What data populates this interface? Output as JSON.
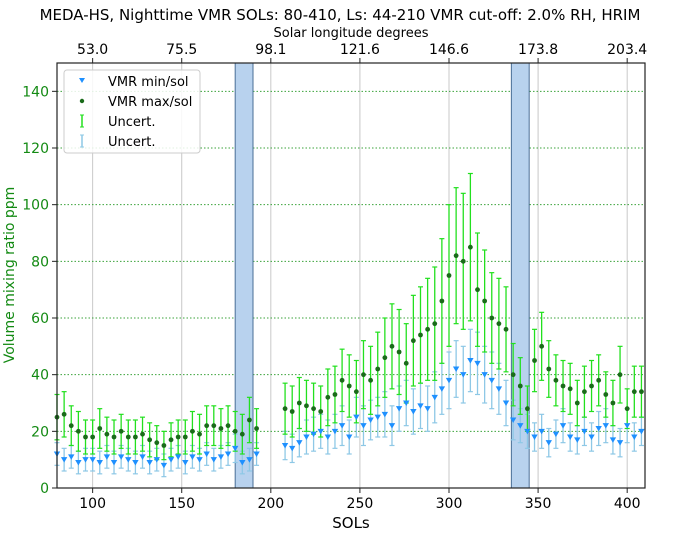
{
  "chart_data": {
    "type": "scatter",
    "title": "MEDA-HS, Nighttime VMR SOLs: 80-410, Ls: 44-210 VMR cut-off: 2.0% RH, HRIM",
    "xlabel": "SOLs",
    "ylabel": "Volume mixing ratio ppm",
    "top_xlabel": "Solar longitude degrees",
    "xlim": [
      80,
      410
    ],
    "ylim": [
      0,
      150
    ],
    "x_ticks": [
      100,
      150,
      200,
      250,
      300,
      350,
      400
    ],
    "y_ticks": [
      0,
      20,
      40,
      60,
      80,
      100,
      120,
      140
    ],
    "top_ticks": [
      "53.0",
      "75.5",
      "98.1",
      "121.6",
      "146.6",
      "173.8",
      "203.4"
    ],
    "grid": true,
    "legend_position": "top-left",
    "legend": [
      "VMR min/sol",
      "VMR max/sol",
      "Uncert.",
      "Uncert."
    ],
    "colors": {
      "min": "#1e90ff",
      "max": "#1a6b1a",
      "max_err": "#22e01e",
      "min_err": "#8ec8e6",
      "band": "#b8d2ee",
      "band_edge": "#4a6f96",
      "ylabel": "#138a13"
    },
    "shaded_sol_ranges": [
      [
        180,
        190
      ],
      [
        335,
        345
      ]
    ],
    "sols": [
      80,
      84,
      88,
      92,
      96,
      100,
      104,
      108,
      112,
      116,
      120,
      124,
      128,
      132,
      136,
      140,
      144,
      148,
      152,
      156,
      160,
      164,
      168,
      172,
      176,
      180,
      184,
      188,
      192,
      208,
      212,
      216,
      220,
      224,
      228,
      232,
      236,
      240,
      244,
      248,
      252,
      256,
      260,
      264,
      268,
      272,
      276,
      280,
      284,
      288,
      292,
      296,
      300,
      304,
      308,
      312,
      316,
      320,
      324,
      328,
      332,
      336,
      340,
      344,
      348,
      352,
      356,
      360,
      364,
      368,
      372,
      376,
      380,
      384,
      388,
      392,
      396,
      400,
      404,
      408
    ],
    "series": [
      {
        "name": "VMR max/sol",
        "values": [
          25,
          26,
          22,
          20,
          18,
          18,
          21,
          19,
          18,
          20,
          18,
          18,
          19,
          17,
          16,
          15,
          17,
          18,
          18,
          20,
          19,
          22,
          22,
          21,
          22,
          20,
          19,
          24,
          21,
          28,
          27,
          30,
          29,
          28,
          27,
          32,
          33,
          38,
          36,
          34,
          40,
          38,
          42,
          46,
          50,
          48,
          44,
          52,
          54,
          56,
          58,
          66,
          75,
          82,
          80,
          85,
          70,
          66,
          60,
          58,
          56,
          40,
          36,
          28,
          45,
          50,
          42,
          38,
          36,
          35,
          30,
          34,
          36,
          38,
          33,
          30,
          40,
          28,
          34,
          34
        ],
        "uncert": [
          8,
          8,
          7,
          7,
          6,
          6,
          7,
          6,
          6,
          6,
          6,
          6,
          6,
          6,
          6,
          5,
          6,
          6,
          6,
          7,
          7,
          7,
          7,
          7,
          7,
          7,
          7,
          8,
          7,
          9,
          9,
          9,
          9,
          9,
          9,
          10,
          10,
          11,
          11,
          11,
          12,
          12,
          13,
          14,
          15,
          15,
          14,
          16,
          17,
          18,
          20,
          22,
          25,
          24,
          24,
          26,
          20,
          18,
          16,
          16,
          15,
          11,
          10,
          8,
          11,
          12,
          10,
          9,
          9,
          9,
          8,
          9,
          9,
          9,
          8,
          8,
          10,
          7,
          9,
          9
        ]
      },
      {
        "name": "VMR min/sol",
        "values": [
          12,
          10,
          11,
          9,
          10,
          10,
          9,
          11,
          9,
          11,
          10,
          9,
          11,
          9,
          10,
          8,
          10,
          11,
          9,
          11,
          10,
          12,
          10,
          11,
          12,
          14,
          9,
          10,
          12,
          15,
          14,
          16,
          18,
          19,
          20,
          18,
          20,
          22,
          18,
          25,
          22,
          24,
          25,
          26,
          22,
          28,
          30,
          27,
          29,
          28,
          32,
          35,
          38,
          42,
          40,
          45,
          44,
          40,
          38,
          35,
          30,
          24,
          22,
          20,
          18,
          20,
          16,
          19,
          22,
          18,
          17,
          20,
          18,
          21,
          22,
          17,
          16,
          22,
          18,
          20
        ],
        "uncert": [
          4,
          4,
          4,
          4,
          4,
          4,
          4,
          4,
          4,
          4,
          4,
          4,
          4,
          4,
          4,
          4,
          4,
          4,
          4,
          4,
          4,
          4,
          4,
          4,
          4,
          5,
          4,
          4,
          4,
          5,
          5,
          5,
          6,
          6,
          6,
          6,
          6,
          7,
          6,
          7,
          7,
          7,
          7,
          8,
          7,
          8,
          8,
          8,
          8,
          8,
          9,
          9,
          10,
          10,
          10,
          11,
          11,
          10,
          10,
          9,
          8,
          7,
          6,
          6,
          5,
          6,
          5,
          5,
          6,
          5,
          5,
          5,
          5,
          6,
          6,
          5,
          5,
          6,
          5,
          5
        ]
      }
    ]
  }
}
